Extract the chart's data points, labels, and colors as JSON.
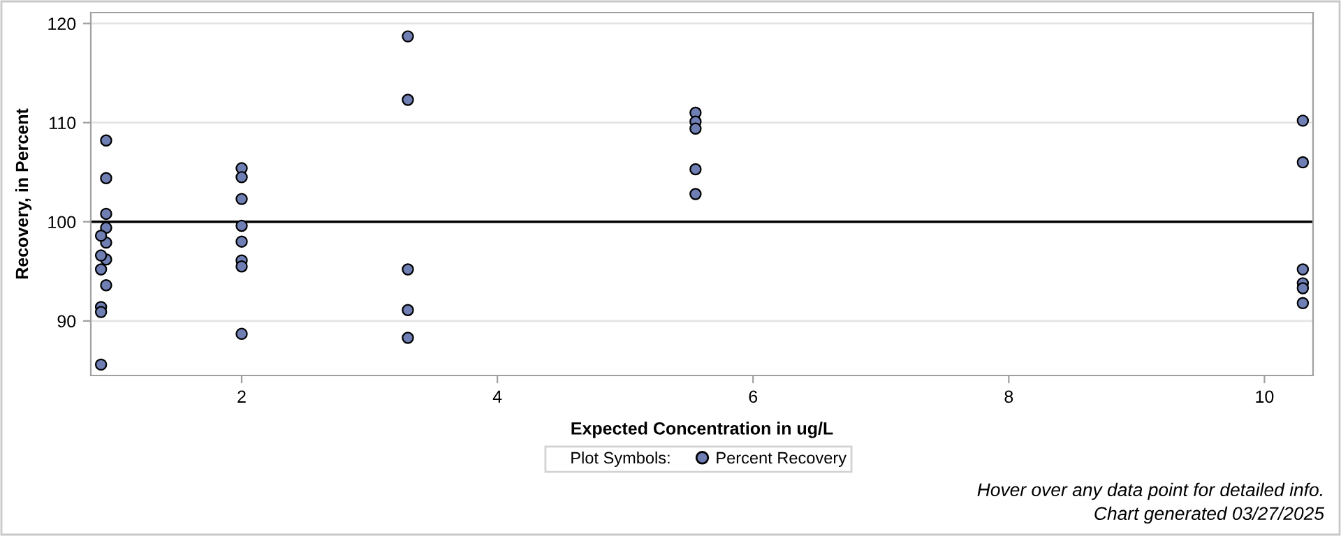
{
  "chart_data": {
    "type": "scatter",
    "xlabel": "Expected Concentration in ug/L",
    "ylabel": "Recovery, in Percent",
    "legend_title": "Plot Symbols:",
    "series": [
      {
        "name": "Percent Recovery",
        "color": "#6f7fb4",
        "x": [
          0.94,
          0.94,
          0.94,
          0.94,
          0.94,
          0.94,
          0.94,
          0.9,
          0.9,
          0.9,
          0.9,
          0.9,
          0.9,
          2,
          2,
          2,
          2,
          2,
          2,
          2,
          2,
          3.3,
          3.3,
          3.3,
          3.3,
          3.3,
          5.55,
          5.55,
          5.55,
          5.55,
          5.55,
          10.3,
          10.3,
          10.3,
          10.3,
          10.3,
          10.3
        ],
        "values": [
          108.2,
          104.4,
          100.8,
          99.4,
          97.9,
          96.2,
          93.6,
          98.6,
          96.6,
          95.2,
          91.4,
          90.9,
          85.6,
          105.4,
          104.5,
          102.3,
          99.6,
          98.0,
          96.1,
          95.5,
          88.7,
          118.7,
          112.3,
          95.2,
          91.1,
          88.3,
          111.0,
          110.1,
          109.4,
          105.3,
          102.8,
          110.2,
          106.0,
          95.2,
          93.8,
          93.3,
          91.8
        ]
      }
    ],
    "marker": "circle",
    "grid": "y",
    "legend": "bottom",
    "xlim": [
      0.82,
      10.38
    ],
    "xticks": [
      2,
      4,
      6,
      8,
      10
    ],
    "ylim": [
      84.5,
      121.1
    ],
    "yticks": [
      90,
      100,
      110,
      120
    ],
    "ref_lines": [
      {
        "axis": "y",
        "value": 100,
        "color": "#000000"
      }
    ],
    "annotations": [
      "Hover over any data point for detailed info.",
      "Chart generated 03/27/2025"
    ]
  }
}
